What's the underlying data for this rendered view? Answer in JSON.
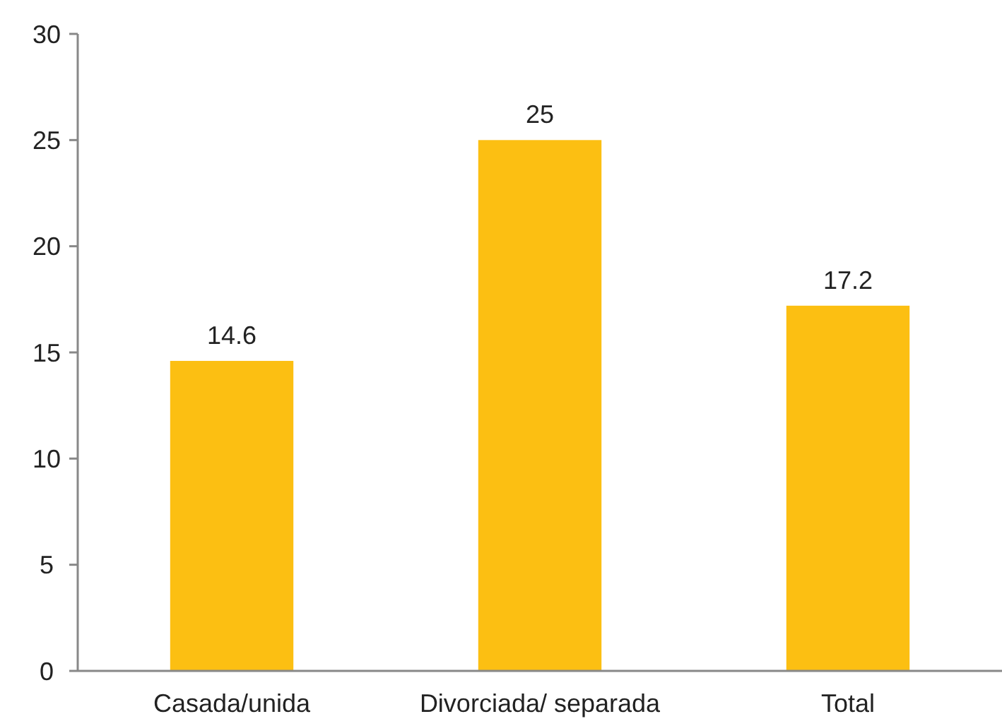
{
  "chart_data": {
    "type": "bar",
    "categories": [
      "Casada/unida",
      "Divorciada/ separada",
      "Total"
    ],
    "values": [
      14.6,
      25,
      17.2
    ],
    "color": "#fcbf12",
    "ylim": [
      0,
      30
    ],
    "yticks": [
      0,
      5,
      10,
      15,
      20,
      25,
      30
    ],
    "data_labels": true
  }
}
